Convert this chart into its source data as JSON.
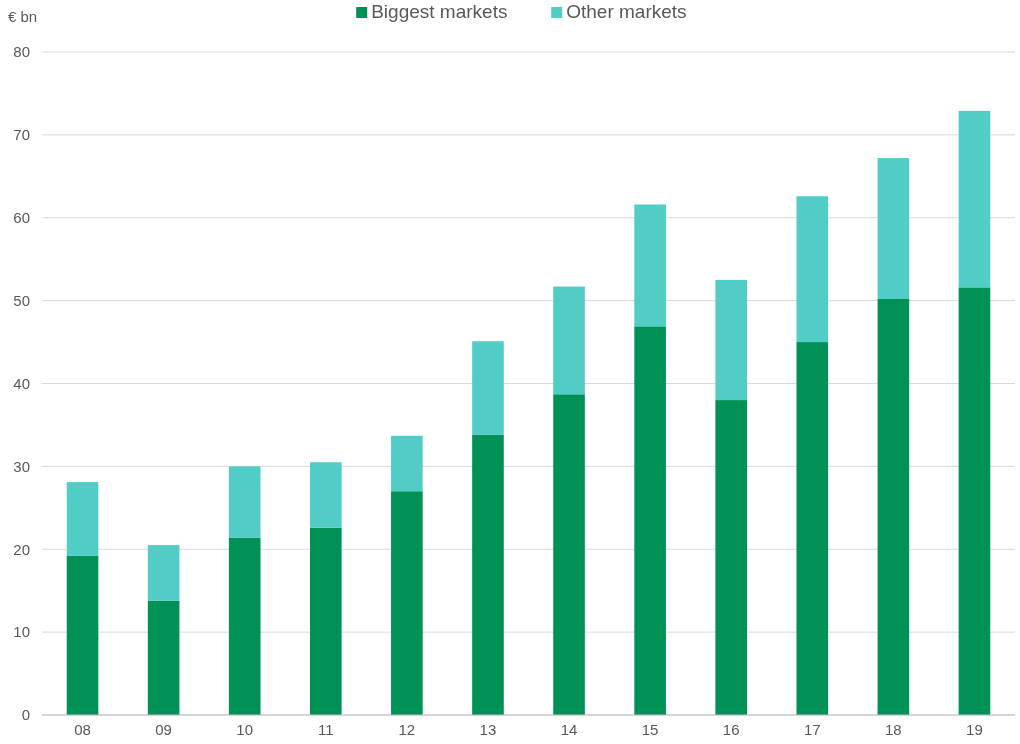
{
  "chart_data": {
    "type": "bar",
    "stacked": true,
    "ylabel": "€ bn",
    "categories": [
      "08",
      "09",
      "10",
      "11",
      "12",
      "13",
      "14",
      "15",
      "16",
      "17",
      "18",
      "19"
    ],
    "series": [
      {
        "name": "Biggest markets",
        "color": "#009157",
        "values": [
          19.2,
          13.8,
          21.4,
          22.6,
          27.0,
          33.8,
          38.7,
          46.9,
          38.0,
          45.0,
          50.2,
          51.6
        ]
      },
      {
        "name": "Other markets",
        "color": "#52cdc6",
        "values": [
          8.9,
          6.7,
          8.6,
          7.9,
          6.7,
          11.3,
          13.0,
          14.7,
          14.5,
          17.6,
          17.0,
          21.3
        ]
      }
    ],
    "ylim": [
      0,
      80
    ],
    "yticks": [
      0,
      10,
      20,
      30,
      40,
      50,
      60,
      70,
      80
    ],
    "grid": "y",
    "legend": "top"
  }
}
